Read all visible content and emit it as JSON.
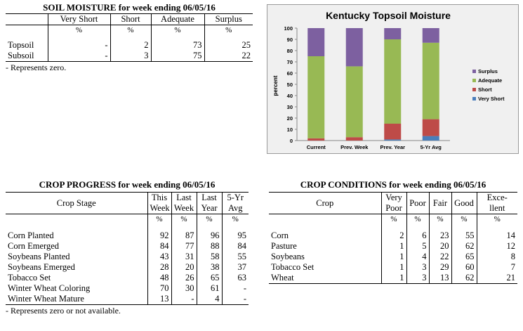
{
  "soil": {
    "title": "SOIL MOISTURE for week ending 06/05/16",
    "headers": [
      "Very Short",
      "Short",
      "Adequate",
      "Surplus"
    ],
    "unit": "%",
    "rows": [
      {
        "label": "Topsoil",
        "values": [
          "-",
          "2",
          "73",
          "25"
        ]
      },
      {
        "label": "Subsoil",
        "values": [
          "-",
          "3",
          "75",
          "22"
        ]
      }
    ],
    "note": "- Represents zero."
  },
  "progress": {
    "title": "CROP PROGRESS for week ending 06/05/16",
    "stage_header": "Crop Stage",
    "headers": [
      {
        "l1": "This",
        "l2": "Week"
      },
      {
        "l1": "Last",
        "l2": "Week"
      },
      {
        "l1": "Last",
        "l2": "Year"
      },
      {
        "l1": "5-Yr",
        "l2": "Avg"
      }
    ],
    "unit": "%",
    "rows": [
      {
        "label": "Corn Planted",
        "values": [
          "92",
          "87",
          "96",
          "95"
        ]
      },
      {
        "label": "Corn Emerged",
        "values": [
          "84",
          "77",
          "88",
          "84"
        ]
      },
      {
        "label": "Soybeans Planted",
        "values": [
          "43",
          "31",
          "58",
          "55"
        ]
      },
      {
        "label": "Soybeans Emerged",
        "values": [
          "28",
          "20",
          "38",
          "37"
        ]
      },
      {
        "label": "Tobacco Set",
        "values": [
          "48",
          "26",
          "65",
          "63"
        ]
      },
      {
        "label": "Winter Wheat Coloring",
        "values": [
          "70",
          "30",
          "61",
          "-"
        ]
      },
      {
        "label": "Winter Wheat Mature",
        "values": [
          "13",
          "-",
          "4",
          "-"
        ]
      }
    ],
    "note": "- Represents zero or not available."
  },
  "conditions": {
    "title": "CROP CONDITIONS for week ending 06/05/16",
    "crop_header": "Crop",
    "headers": [
      {
        "l1": "Very",
        "l2": "Poor"
      },
      {
        "l1": "Poor",
        "l2": ""
      },
      {
        "l1": "Fair",
        "l2": ""
      },
      {
        "l1": "Good",
        "l2": ""
      },
      {
        "l1": "Exce-",
        "l2": "llent"
      }
    ],
    "unit": "%",
    "rows": [
      {
        "label": "Corn",
        "values": [
          "2",
          "6",
          "23",
          "55",
          "14"
        ]
      },
      {
        "label": "Pasture",
        "values": [
          "1",
          "5",
          "20",
          "62",
          "12"
        ]
      },
      {
        "label": "Soybeans",
        "values": [
          "1",
          "4",
          "22",
          "65",
          "8"
        ]
      },
      {
        "label": "Tobacco Set",
        "values": [
          "1",
          "3",
          "29",
          "60",
          "7"
        ]
      },
      {
        "label": "Wheat",
        "values": [
          "1",
          "3",
          "13",
          "62",
          "21"
        ]
      }
    ]
  },
  "chart_data": {
    "type": "bar",
    "stacked": true,
    "title": "Kentucky Topsoil Moisture",
    "ylabel": "percent",
    "xlabel": "",
    "ylim": [
      0,
      100
    ],
    "yticks": [
      0,
      10,
      20,
      30,
      40,
      50,
      60,
      70,
      80,
      90,
      100
    ],
    "categories": [
      "Current",
      "Prev. Week",
      "Prev. Year",
      "5-Yr Avg"
    ],
    "series": [
      {
        "name": "Very Short",
        "color": "#4a7ebb",
        "values": [
          0,
          0,
          1,
          4
        ]
      },
      {
        "name": "Short",
        "color": "#be4b48",
        "values": [
          2,
          3,
          14,
          15
        ]
      },
      {
        "name": "Adequate",
        "color": "#98b954",
        "values": [
          73,
          63,
          75,
          68
        ]
      },
      {
        "name": "Surplus",
        "color": "#7d60a0",
        "values": [
          25,
          34,
          10,
          13
        ]
      }
    ],
    "legend_position": "right",
    "grid": false
  }
}
